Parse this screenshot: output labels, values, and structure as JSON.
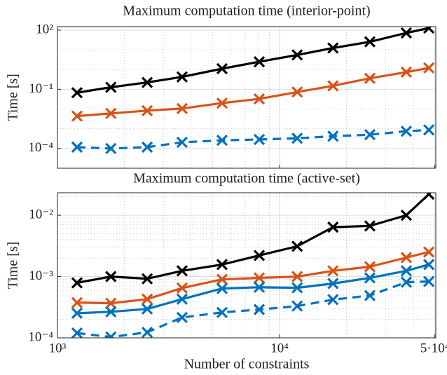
{
  "chart_data": [
    {
      "type": "line",
      "title": "Maximum computation time (interior-point)",
      "ylabel": "Time [s]",
      "xscale": "log",
      "yscale": "log",
      "grid": true,
      "xtick_labels": false,
      "x": [
        1225,
        1740,
        2535,
        3640,
        5510,
        8100,
        12000,
        17400,
        25500,
        37200,
        47000
      ],
      "xlim": [
        1000,
        50500
      ],
      "xticks": [
        1000,
        10000,
        50000
      ],
      "ylim": [
        1e-05,
        150
      ],
      "yticks": [
        {
          "value": 0.0001,
          "label": "10⁻⁴"
        },
        {
          "value": 0.1,
          "label": "10⁻¹"
        },
        {
          "value": 100,
          "label": "10²"
        }
      ],
      "series": [
        {
          "color": "#000000",
          "dash": false,
          "values": [
            0.067,
            0.127,
            0.223,
            0.425,
            1.11,
            2.49,
            5.5,
            12.4,
            25.5,
            72,
            127
          ]
        },
        {
          "color": "#d95319",
          "dash": false,
          "values": [
            0.0044,
            0.006,
            0.0083,
            0.0106,
            0.02,
            0.0325,
            0.0727,
            0.15,
            0.36,
            0.745,
            1.21
          ]
        },
        {
          "color": "#0072bd",
          "dash": true,
          "values": [
            0.000117,
            0.0001,
            0.000117,
            0.000207,
            0.00026,
            0.000285,
            0.00033,
            0.00042,
            0.0005,
            0.00075,
            0.00087
          ]
        }
      ]
    },
    {
      "type": "line",
      "title": "Maximum computation time (active-set)",
      "ylabel": "Time [s]",
      "xlabel": "Number of constraints",
      "xscale": "log",
      "yscale": "log",
      "grid": true,
      "xtick_labels": true,
      "x": [
        1225,
        1740,
        2535,
        3640,
        5510,
        8100,
        12000,
        17400,
        25500,
        37200,
        47000
      ],
      "xlim": [
        1000,
        50500
      ],
      "xticks": [
        {
          "value": 1000,
          "label": "10³"
        },
        {
          "value": 10000,
          "label": "10⁴"
        },
        {
          "value": 50000,
          "label": "5·10⁴"
        }
      ],
      "ylim": [
        0.0001,
        0.0233
      ],
      "yticks": [
        {
          "value": 0.0001,
          "label": "10⁻⁴"
        },
        {
          "value": 0.001,
          "label": "10⁻³"
        },
        {
          "value": 0.01,
          "label": "10⁻²"
        }
      ],
      "series": [
        {
          "color": "#000000",
          "dash": false,
          "values": [
            0.00079,
            0.001,
            0.00092,
            0.00124,
            0.00157,
            0.00221,
            0.00312,
            0.0064,
            0.0067,
            0.01,
            0.0221
          ]
        },
        {
          "color": "#d95319",
          "dash": false,
          "values": [
            0.000376,
            0.000367,
            0.000428,
            0.00065,
            0.0009,
            0.00095,
            0.001,
            0.00124,
            0.00145,
            0.00204,
            0.00252
          ]
        },
        {
          "color": "#0072bd",
          "dash": false,
          "values": [
            0.000252,
            0.000266,
            0.000296,
            0.000428,
            0.000638,
            0.00067,
            0.000656,
            0.00077,
            0.00095,
            0.00124,
            0.00157
          ]
        },
        {
          "color": "#0072bd",
          "dash": true,
          "values": [
            0.00012,
            0.000103,
            0.000123,
            0.000215,
            0.00026,
            0.00029,
            0.00033,
            0.00042,
            0.00049,
            0.00081,
            0.00083
          ]
        }
      ]
    }
  ]
}
